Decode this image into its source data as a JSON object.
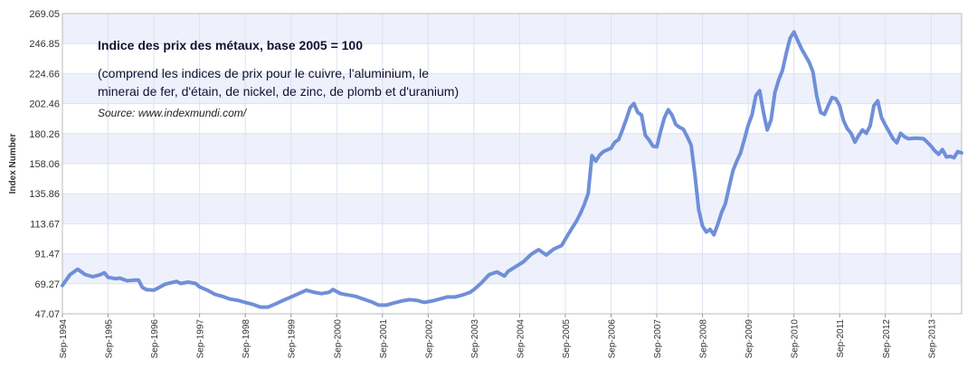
{
  "chart_data": {
    "type": "line",
    "title": "",
    "xlabel": "",
    "ylabel": "Index Number",
    "ylim": [
      47.07,
      269.05
    ],
    "yticks": [
      "269.05",
      "246.85",
      "224.66",
      "202.46",
      "180.26",
      "158.06",
      "135.86",
      "113.67",
      "91.47",
      "69.27",
      "47.07"
    ],
    "xticks": [
      "Sep-1994",
      "Sep-1995",
      "Sep-1996",
      "Sep-1997",
      "Sep-1998",
      "Sep-1999",
      "Sep-2000",
      "Sep-2001",
      "Sep-2002",
      "Sep-2003",
      "Sep-2004",
      "Sep-2005",
      "Sep-2006",
      "Sep-2007",
      "Sep-2008",
      "Sep-2009",
      "Sep-2010",
      "Sep-2011",
      "Sep-2012",
      "Sep-2013"
    ],
    "grid": true,
    "annotations": {
      "heading": "Indice des prix des métaux, base 2005 = 100",
      "line1": "(comprend les indices de prix pour le cuivre, l'aluminium, le",
      "line2": "minerai de fer, d'étain, de nickel, de zinc, de plomb et d'uranium)",
      "source": "Source: www.indexmundi.com/"
    },
    "series": [
      {
        "color": "#6f8fd8",
        "points": [
          [
            "1994-09",
            68.0
          ],
          [
            "1994-10",
            72.0
          ],
          [
            "1994-11",
            76.0
          ],
          [
            "1995-01",
            80.0
          ],
          [
            "1995-02",
            78.0
          ],
          [
            "1995-03",
            76.0
          ],
          [
            "1995-05",
            74.5
          ],
          [
            "1995-07",
            76.0
          ],
          [
            "1995-08",
            77.5
          ],
          [
            "1995-09",
            74.0
          ],
          [
            "1995-11",
            73.0
          ],
          [
            "1995-12",
            73.5
          ],
          [
            "1996-02",
            71.5
          ],
          [
            "1996-04",
            72.0
          ],
          [
            "1996-05",
            72.0
          ],
          [
            "1996-06",
            66.5
          ],
          [
            "1996-07",
            65.0
          ],
          [
            "1996-09",
            64.5
          ],
          [
            "1996-10",
            66.0
          ],
          [
            "1996-12",
            69.0
          ],
          [
            "1997-03",
            71.0
          ],
          [
            "1997-04",
            69.5
          ],
          [
            "1997-06",
            70.5
          ],
          [
            "1997-08",
            69.5
          ],
          [
            "1997-09",
            67.0
          ],
          [
            "1997-11",
            64.5
          ],
          [
            "1998-01",
            61.5
          ],
          [
            "1998-03",
            60.0
          ],
          [
            "1998-05",
            58.0
          ],
          [
            "1998-07",
            57.0
          ],
          [
            "1998-09",
            55.5
          ],
          [
            "1998-11",
            54.0
          ],
          [
            "1999-01",
            52.0
          ],
          [
            "1999-03",
            52.0
          ],
          [
            "1999-05",
            54.5
          ],
          [
            "1999-07",
            57.0
          ],
          [
            "1999-09",
            59.5
          ],
          [
            "1999-11",
            62.0
          ],
          [
            "2000-01",
            64.5
          ],
          [
            "2000-03",
            63.0
          ],
          [
            "2000-05",
            62.0
          ],
          [
            "2000-07",
            63.0
          ],
          [
            "2000-08",
            65.0
          ],
          [
            "2000-10",
            62.0
          ],
          [
            "2000-12",
            61.0
          ],
          [
            "2001-02",
            60.0
          ],
          [
            "2001-04",
            58.0
          ],
          [
            "2001-06",
            56.0
          ],
          [
            "2001-08",
            53.5
          ],
          [
            "2001-10",
            53.5
          ],
          [
            "2001-12",
            55.0
          ],
          [
            "2002-02",
            56.5
          ],
          [
            "2002-04",
            57.5
          ],
          [
            "2002-06",
            57.0
          ],
          [
            "2002-08",
            55.5
          ],
          [
            "2002-10",
            56.5
          ],
          [
            "2002-12",
            58.0
          ],
          [
            "2003-02",
            59.5
          ],
          [
            "2003-04",
            59.5
          ],
          [
            "2003-06",
            61.0
          ],
          [
            "2003-08",
            63.0
          ],
          [
            "2003-09",
            65.0
          ],
          [
            "2003-11",
            70.0
          ],
          [
            "2004-01",
            76.0
          ],
          [
            "2004-03",
            78.0
          ],
          [
            "2004-05",
            75.0
          ],
          [
            "2004-06",
            78.5
          ],
          [
            "2004-08",
            82.0
          ],
          [
            "2004-10",
            85.5
          ],
          [
            "2004-12",
            91.0
          ],
          [
            "2005-02",
            94.5
          ],
          [
            "2005-04",
            90.5
          ],
          [
            "2005-06",
            95.0
          ],
          [
            "2005-08",
            97.5
          ],
          [
            "2005-10",
            107.0
          ],
          [
            "2005-12",
            116.0
          ],
          [
            "2006-01",
            121.5
          ],
          [
            "2006-02",
            128.0
          ],
          [
            "2006-03",
            136.0
          ],
          [
            "2006-04",
            164.0
          ],
          [
            "2006-05",
            160.0
          ],
          [
            "2006-06",
            164.5
          ],
          [
            "2006-07",
            167.0
          ],
          [
            "2006-09",
            169.5
          ],
          [
            "2006-10",
            174.0
          ],
          [
            "2006-11",
            176.0
          ],
          [
            "2006-12",
            183.0
          ],
          [
            "2007-01",
            191.0
          ],
          [
            "2007-02",
            199.5
          ],
          [
            "2007-03",
            202.5
          ],
          [
            "2007-04",
            196.0
          ],
          [
            "2007-05",
            194.0
          ],
          [
            "2007-06",
            179.0
          ],
          [
            "2007-07",
            175.5
          ],
          [
            "2007-08",
            171.0
          ],
          [
            "2007-09",
            170.5
          ],
          [
            "2007-10",
            182.0
          ],
          [
            "2007-11",
            192.0
          ],
          [
            "2007-12",
            198.0
          ],
          [
            "2008-01",
            194.0
          ],
          [
            "2008-02",
            187.0
          ],
          [
            "2008-03",
            185.0
          ],
          [
            "2008-04",
            183.5
          ],
          [
            "2008-05",
            178.0
          ],
          [
            "2008-06",
            172.0
          ],
          [
            "2008-07",
            150.0
          ],
          [
            "2008-08",
            124.0
          ],
          [
            "2008-09",
            112.0
          ],
          [
            "2008-10",
            107.5
          ],
          [
            "2008-11",
            109.5
          ],
          [
            "2008-12",
            105.5
          ],
          [
            "2009-01",
            113.0
          ],
          [
            "2009-02",
            122.0
          ],
          [
            "2009-03",
            128.5
          ],
          [
            "2009-04",
            141.0
          ],
          [
            "2009-05",
            153.0
          ],
          [
            "2009-06",
            160.0
          ],
          [
            "2009-07",
            166.0
          ],
          [
            "2009-08",
            176.0
          ],
          [
            "2009-09",
            186.5
          ],
          [
            "2009-10",
            194.0
          ],
          [
            "2009-11",
            208.5
          ],
          [
            "2009-12",
            212.0
          ],
          [
            "2010-01",
            196.0
          ],
          [
            "2010-02",
            183.0
          ],
          [
            "2010-03",
            190.5
          ],
          [
            "2010-04",
            210.5
          ],
          [
            "2010-05",
            220.0
          ],
          [
            "2010-06",
            227.0
          ],
          [
            "2010-07",
            240.0
          ],
          [
            "2010-08",
            251.0
          ],
          [
            "2010-09",
            255.5
          ],
          [
            "2010-10",
            249.0
          ],
          [
            "2010-11",
            243.0
          ],
          [
            "2010-12",
            238.0
          ],
          [
            "2011-01",
            233.0
          ],
          [
            "2011-02",
            226.0
          ],
          [
            "2011-03",
            208.0
          ],
          [
            "2011-04",
            196.0
          ],
          [
            "2011-05",
            194.5
          ],
          [
            "2011-06",
            201.0
          ],
          [
            "2011-07",
            207.0
          ],
          [
            "2011-08",
            206.0
          ],
          [
            "2011-09",
            201.0
          ],
          [
            "2011-10",
            190.0
          ],
          [
            "2011-11",
            184.0
          ],
          [
            "2011-12",
            180.5
          ],
          [
            "2012-01",
            174.0
          ],
          [
            "2012-02",
            179.0
          ],
          [
            "2012-03",
            183.0
          ],
          [
            "2012-04",
            180.5
          ],
          [
            "2012-05",
            186.0
          ],
          [
            "2012-06",
            201.0
          ],
          [
            "2012-07",
            204.5
          ],
          [
            "2012-08",
            192.0
          ],
          [
            "2012-09",
            186.5
          ],
          [
            "2012-10",
            181.5
          ],
          [
            "2012-11",
            176.5
          ],
          [
            "2012-12",
            173.5
          ],
          [
            "2013-01",
            180.5
          ],
          [
            "2013-02",
            178.0
          ],
          [
            "2013-03",
            176.5
          ],
          [
            "2013-05",
            177.0
          ],
          [
            "2013-07",
            176.5
          ],
          [
            "2013-08",
            174.0
          ],
          [
            "2013-09",
            171.0
          ],
          [
            "2013-10",
            167.5
          ],
          [
            "2013-11",
            165.0
          ],
          [
            "2013-12",
            168.5
          ],
          [
            "2014-01",
            163.0
          ],
          [
            "2014-02",
            163.5
          ],
          [
            "2014-03",
            162.5
          ],
          [
            "2014-04",
            167.0
          ],
          [
            "2014-05",
            166.0
          ]
        ]
      }
    ]
  }
}
